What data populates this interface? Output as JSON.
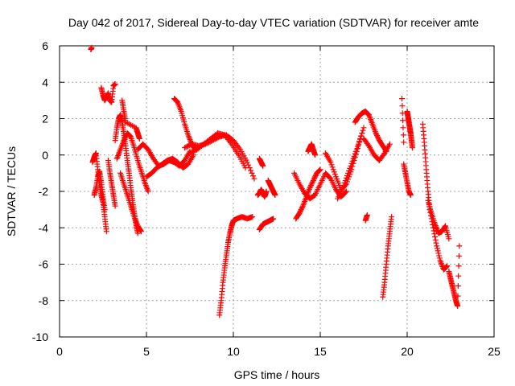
{
  "chart_data": {
    "type": "scatter",
    "title": "Day 042 of 2017, Sidereal Day-to-day VTEC variation (SDTVAR) for receiver amte",
    "xlabel": "GPS time / hours",
    "ylabel": "SDTVAR / TECUs",
    "xlim": [
      0,
      25
    ],
    "ylim": [
      -10,
      6
    ],
    "xticks": [
      0,
      5,
      10,
      15,
      20,
      25
    ],
    "yticks": [
      -10,
      -8,
      -6,
      -4,
      -2,
      0,
      2,
      4,
      6
    ],
    "xtick_labels": [
      "0",
      "5",
      "10",
      "15",
      "20",
      "25"
    ],
    "ytick_labels": [
      "-10",
      "-8",
      "-6",
      "-4",
      "-2",
      "0",
      "2",
      "4",
      "6"
    ],
    "grid": true,
    "marker": "+",
    "color": "#ff0000",
    "series": [
      {
        "name": "s01",
        "x": [
          1.8,
          1.85
        ],
        "y": [
          5.8,
          5.9
        ]
      },
      {
        "name": "s02",
        "x": [
          1.9,
          2.0,
          2.1,
          2.2,
          2.3,
          2.4,
          2.5,
          2.6,
          2.7
        ],
        "y": [
          -0.4,
          -0.1,
          0.1,
          -0.8,
          -1.6,
          -2.2,
          -2.6,
          -3.4,
          -4.2
        ]
      },
      {
        "name": "s03",
        "x": [
          2.0,
          2.1,
          2.2,
          2.3,
          2.4,
          2.5,
          2.6
        ],
        "y": [
          -2.2,
          -1.8,
          -1.2,
          -0.9,
          -1.5,
          -2.3,
          -3.0
        ]
      },
      {
        "name": "s04",
        "x": [
          2.4,
          2.5,
          2.6,
          2.7,
          2.8,
          2.9,
          3.0,
          3.1,
          3.2
        ],
        "y": [
          3.7,
          3.3,
          3.0,
          3.2,
          3.4,
          3.0,
          2.9,
          3.8,
          3.9
        ]
      },
      {
        "name": "s05",
        "x": [
          2.8,
          2.9,
          3.0,
          3.1,
          3.2
        ],
        "y": [
          -0.3,
          -1.0,
          -1.6,
          -2.2,
          -2.8
        ]
      },
      {
        "name": "s06",
        "x": [
          3.2,
          3.3,
          3.4,
          3.5,
          3.6,
          3.7,
          3.8,
          3.9,
          4.0,
          4.1,
          4.2,
          4.3,
          4.4,
          4.5
        ],
        "y": [
          0.8,
          1.5,
          2.0,
          2.2,
          1.8,
          1.2,
          0.5,
          -0.3,
          -1.0,
          -1.8,
          -2.5,
          -3.2,
          -3.8,
          -4.3
        ]
      },
      {
        "name": "s07",
        "x": [
          3.3,
          3.5,
          3.7,
          3.9,
          4.1,
          4.3,
          4.5,
          4.7,
          4.9,
          5.1
        ],
        "y": [
          -0.2,
          0.3,
          0.8,
          1.2,
          1.0,
          0.4,
          -0.3,
          -0.9,
          -1.5,
          -2.0
        ]
      },
      {
        "name": "s08",
        "x": [
          3.5,
          3.7,
          3.9,
          4.1,
          4.3,
          4.5,
          4.7
        ],
        "y": [
          -1.0,
          -1.6,
          -2.2,
          -2.8,
          -3.4,
          -3.9,
          -4.2
        ]
      },
      {
        "name": "s09",
        "x": [
          3.6,
          3.7,
          3.8,
          4.4,
          4.5,
          4.6
        ],
        "y": [
          3.0,
          2.4,
          1.8,
          1.5,
          1.2,
          0.9
        ]
      },
      {
        "name": "s10",
        "x": [
          4.5,
          4.8,
          5.1,
          5.4,
          5.7,
          6.0,
          6.3,
          6.6,
          6.9,
          7.2,
          7.5
        ],
        "y": [
          0.3,
          0.6,
          0.3,
          -0.2,
          -0.6,
          -0.5,
          -0.3,
          -0.4,
          -0.6,
          -0.3,
          0.2
        ]
      },
      {
        "name": "s11",
        "x": [
          5.0,
          5.3,
          5.6,
          5.9,
          6.2,
          6.5,
          6.8,
          7.1,
          7.4,
          7.7
        ],
        "y": [
          -1.2,
          -1.0,
          -0.7,
          -0.5,
          -0.3,
          -0.2,
          -0.4,
          -0.7,
          -0.5,
          0.0
        ]
      },
      {
        "name": "s12",
        "x": [
          6.6,
          6.8,
          7.0,
          7.2,
          7.4,
          7.6,
          7.8
        ],
        "y": [
          3.1,
          2.9,
          2.4,
          1.7,
          1.1,
          0.6,
          0.3
        ]
      },
      {
        "name": "s13",
        "x": [
          7.2,
          7.6,
          8.0,
          8.4,
          8.8,
          9.2,
          9.6,
          10.0,
          10.4,
          10.8,
          11.2
        ],
        "y": [
          0.4,
          0.6,
          0.5,
          0.6,
          0.8,
          1.0,
          1.1,
          0.8,
          0.3,
          -0.4,
          -1.3
        ]
      },
      {
        "name": "s14",
        "x": [
          7.5,
          7.9,
          8.3,
          8.7,
          9.1,
          9.5,
          9.9,
          10.3,
          10.7
        ],
        "y": [
          0.1,
          0.3,
          0.6,
          0.9,
          1.2,
          1.1,
          0.6,
          0.0,
          -0.7
        ]
      },
      {
        "name": "s15",
        "x": [
          9.2,
          9.3,
          9.4,
          9.5,
          9.6,
          9.7,
          9.8,
          9.9,
          10.0,
          10.2,
          10.5,
          10.8,
          11.1
        ],
        "y": [
          -8.8,
          -8.0,
          -7.0,
          -6.2,
          -5.5,
          -4.8,
          -4.3,
          -3.9,
          -3.6,
          -3.5,
          -3.4,
          -3.5,
          -3.4
        ]
      },
      {
        "name": "s16",
        "x": [
          11.5,
          11.7,
          11.9,
          12.1,
          12.3
        ],
        "y": [
          -4.1,
          -3.8,
          -3.7,
          -3.6,
          -3.5
        ]
      },
      {
        "name": "s17",
        "x": [
          11.4,
          11.5,
          11.6,
          11.7,
          11.8,
          11.9
        ],
        "y": [
          -2.2,
          -2.1,
          -1.9,
          -2.1,
          -2.3,
          -2.0
        ]
      },
      {
        "name": "s18",
        "x": [
          12.0,
          12.1,
          12.2,
          12.3,
          12.4
        ],
        "y": [
          -1.4,
          -1.6,
          -1.8,
          -2.0,
          -2.2
        ]
      },
      {
        "name": "s19",
        "x": [
          11.5,
          11.6,
          11.7
        ],
        "y": [
          -0.2,
          -0.4,
          -0.6
        ]
      },
      {
        "name": "s20",
        "x": [
          13.5,
          13.8,
          14.1,
          14.4,
          14.7,
          15.0,
          15.3,
          15.6,
          15.9,
          16.2,
          16.5
        ],
        "y": [
          -1.0,
          -1.6,
          -2.1,
          -2.4,
          -2.2,
          -1.6,
          -1.0,
          -1.3,
          -1.9,
          -2.3,
          -2.0
        ]
      },
      {
        "name": "s21",
        "x": [
          13.6,
          13.8,
          14.0,
          14.2,
          14.4,
          14.6,
          14.8,
          15.0
        ],
        "y": [
          -3.5,
          -3.2,
          -2.8,
          -2.3,
          -1.8,
          -1.4,
          -1.0,
          -0.8
        ]
      },
      {
        "name": "s22",
        "x": [
          14.3,
          14.4,
          14.5,
          14.6,
          14.7
        ],
        "y": [
          0.2,
          0.4,
          0.6,
          0.3,
          0.0
        ]
      },
      {
        "name": "s23",
        "x": [
          15.3,
          15.6,
          15.9,
          16.2,
          16.5,
          16.8,
          17.1,
          17.4
        ],
        "y": [
          0.1,
          -0.4,
          -1.2,
          -1.9,
          -1.6,
          -0.8,
          0.2,
          1.2
        ]
      },
      {
        "name": "s24",
        "x": [
          16.0,
          16.3,
          16.6,
          16.9,
          17.2,
          17.5
        ],
        "y": [
          -2.4,
          -1.8,
          -1.0,
          -0.2,
          0.6,
          1.5
        ]
      },
      {
        "name": "s25",
        "x": [
          17.0,
          17.2,
          17.4,
          17.6,
          17.8,
          18.0,
          18.2,
          18.4,
          18.6,
          18.8
        ],
        "y": [
          1.8,
          2.1,
          2.3,
          2.4,
          2.2,
          1.7,
          1.2,
          0.8,
          0.5,
          0.2
        ]
      },
      {
        "name": "s26",
        "x": [
          17.5,
          17.8,
          18.1,
          18.4,
          18.7,
          19.0
        ],
        "y": [
          0.9,
          0.5,
          0.0,
          -0.3,
          0.1,
          0.6
        ]
      },
      {
        "name": "s27",
        "x": [
          17.6,
          17.7
        ],
        "y": [
          -3.6,
          -3.3
        ]
      },
      {
        "name": "s28",
        "x": [
          18.6,
          18.7,
          18.8,
          18.9,
          19.0,
          19.1
        ],
        "y": [
          -7.8,
          -7.0,
          -6.0,
          -5.0,
          -4.2,
          -3.4
        ]
      },
      {
        "name": "s29",
        "x": [
          19.7,
          19.8
        ],
        "y": [
          3.1,
          0.7
        ]
      },
      {
        "name": "s30",
        "x": [
          19.8,
          19.9,
          20.0,
          20.1,
          20.2
        ],
        "y": [
          -0.5,
          -1.0,
          -1.5,
          -2.0,
          -2.2
        ]
      },
      {
        "name": "s31",
        "x": [
          20.0,
          20.05,
          20.1,
          20.15,
          20.2,
          20.25,
          20.3
        ],
        "y": [
          2.4,
          2.1,
          1.8,
          1.5,
          1.2,
          0.8,
          0.4
        ]
      },
      {
        "name": "s32",
        "x": [
          20.9,
          21.0,
          21.1,
          21.2,
          21.3,
          21.5,
          21.7,
          21.9,
          22.1,
          22.3
        ],
        "y": [
          1.7,
          0.5,
          -0.8,
          -2.0,
          -3.0,
          -4.0,
          -5.0,
          -5.8,
          -6.3,
          -6.1
        ]
      },
      {
        "name": "s33",
        "x": [
          21.2,
          21.4,
          21.6,
          21.8,
          22.0,
          22.2,
          22.4
        ],
        "y": [
          -2.5,
          -3.2,
          -3.8,
          -4.3,
          -4.2,
          -3.9,
          -4.6
        ]
      },
      {
        "name": "s34",
        "x": [
          22.4,
          22.5,
          22.6,
          22.7,
          22.8,
          22.9,
          23.0
        ],
        "y": [
          -6.4,
          -6.8,
          -7.2,
          -7.6,
          -8.0,
          -8.3,
          -5.0
        ]
      }
    ]
  }
}
